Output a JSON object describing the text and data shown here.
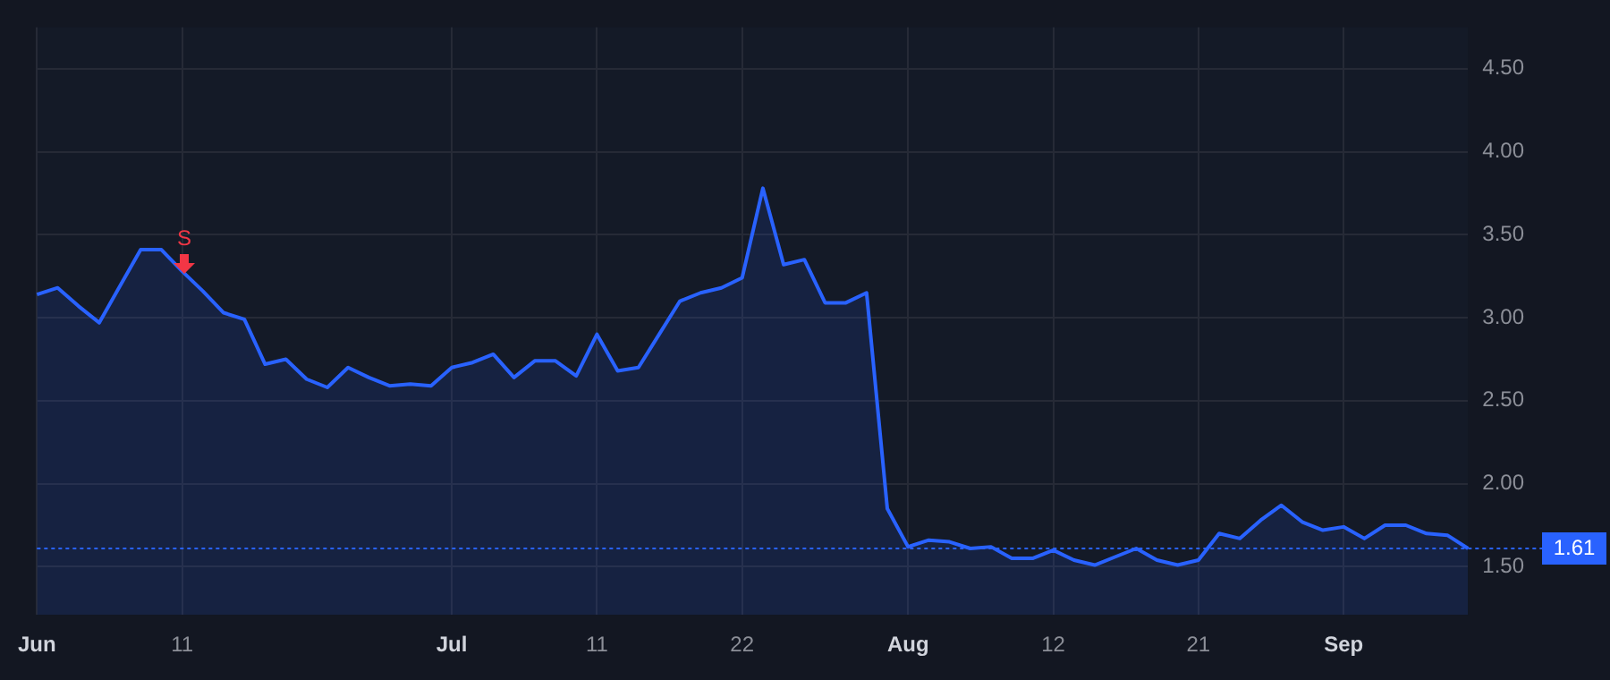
{
  "chart_data": {
    "type": "area",
    "categories": [
      "Jun",
      null,
      null,
      null,
      null,
      null,
      null,
      "11",
      null,
      null,
      null,
      null,
      null,
      null,
      null,
      null,
      null,
      null,
      null,
      null,
      "Jul",
      null,
      null,
      null,
      null,
      null,
      null,
      "11",
      null,
      null,
      null,
      null,
      null,
      null,
      "22",
      null,
      null,
      null,
      null,
      null,
      null,
      null,
      "Aug",
      null,
      null,
      null,
      null,
      null,
      null,
      "12",
      null,
      null,
      null,
      null,
      null,
      null,
      "21",
      null,
      null,
      null,
      null,
      null,
      null,
      "Sep",
      null,
      null,
      null,
      null,
      null,
      null
    ],
    "series": [
      {
        "color": "#2962ff",
        "values": [
          3.14,
          3.18,
          3.07,
          2.97,
          3.19,
          3.41,
          3.41,
          3.28,
          3.16,
          3.03,
          2.99,
          2.72,
          2.75,
          2.63,
          2.58,
          2.7,
          2.64,
          2.59,
          2.6,
          2.59,
          2.7,
          2.73,
          2.78,
          2.64,
          2.74,
          2.74,
          2.65,
          2.9,
          2.68,
          2.7,
          2.9,
          3.1,
          3.15,
          3.18,
          3.24,
          3.78,
          3.32,
          3.35,
          3.09,
          3.09,
          3.15,
          1.85,
          1.62,
          1.66,
          1.65,
          1.61,
          1.62,
          1.55,
          1.55,
          1.6,
          1.54,
          1.51,
          1.56,
          1.61,
          1.54,
          1.51,
          1.54,
          1.7,
          1.67,
          1.78,
          1.87,
          1.77,
          1.72,
          1.74,
          1.67,
          1.75,
          1.75,
          1.7,
          1.69,
          1.61
        ]
      }
    ],
    "ylim": [
      1.21,
      4.75
    ],
    "yticks": [
      {
        "value": 1.5,
        "label": "1.50"
      },
      {
        "value": 2,
        "label": "2.00"
      },
      {
        "value": 2.5,
        "label": "2.50"
      },
      {
        "value": 3,
        "label": "3.00"
      },
      {
        "value": 3.5,
        "label": "3.50"
      },
      {
        "value": 4,
        "label": "4.00"
      },
      {
        "value": 4.5,
        "label": "4.50"
      }
    ],
    "ref_lines": [
      {
        "axis": "y",
        "value": 1.61,
        "label": "1.61",
        "color": "#2962ff",
        "line_style": "dotted"
      }
    ],
    "annotations": [
      "S"
    ],
    "grid": true,
    "legend": false,
    "marker": "none",
    "line_style": "solid"
  }
}
